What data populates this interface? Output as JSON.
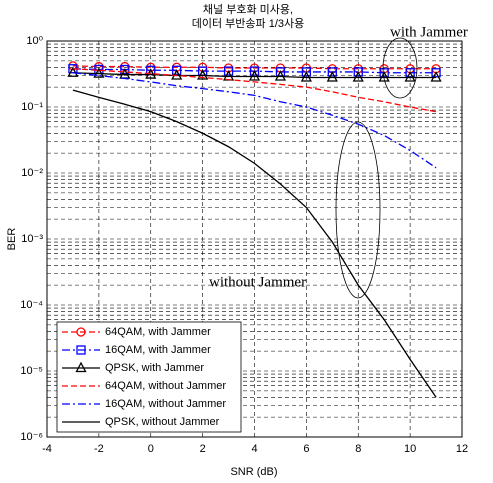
{
  "chart_data": {
    "type": "line",
    "title": [
      "채널 부호화 미사용,",
      "데이터 부반송파 1/3사용"
    ],
    "x_label": "SNR (dB)",
    "y_label": "BER",
    "annotations": [
      "with Jammer",
      "without Jammer"
    ],
    "log_y": true,
    "grid": true,
    "grid_style": "dashed",
    "legend": "lower-left",
    "xlim": [
      -4,
      12
    ],
    "xticks": [
      -4,
      -2,
      0,
      2,
      4,
      6,
      8,
      10,
      12
    ],
    "ylim": [
      1e-06,
      1
    ],
    "yticks": [
      {
        "value": 1e-06,
        "label": "10⁻⁶"
      },
      {
        "value": 1e-05,
        "label": "10⁻⁵"
      },
      {
        "value": 0.0001,
        "label": "10⁻⁴"
      },
      {
        "value": 0.001,
        "label": "10⁻³"
      },
      {
        "value": 0.01,
        "label": "10⁻²"
      },
      {
        "value": 0.1,
        "label": "10⁻¹"
      },
      {
        "value": 1,
        "label": "10⁰"
      }
    ],
    "x": [
      -3,
      -2,
      -1,
      0,
      1,
      2,
      3,
      4,
      5,
      6,
      7,
      8,
      9,
      10,
      11
    ],
    "series": [
      {
        "name": "64QAM, with Jammer",
        "color": "#ff0000",
        "dash": "dashed",
        "marker": "circle",
        "values": [
          0.42,
          0.41,
          0.41,
          0.4,
          0.4,
          0.4,
          0.39,
          0.39,
          0.39,
          0.39,
          0.38,
          0.38,
          0.38,
          0.38,
          0.38
        ]
      },
      {
        "name": "16QAM, with Jammer",
        "color": "#0000ff",
        "dash": "dashdot",
        "marker": "square",
        "values": [
          0.38,
          0.37,
          0.37,
          0.36,
          0.36,
          0.35,
          0.35,
          0.35,
          0.34,
          0.34,
          0.34,
          0.34,
          0.33,
          0.33,
          0.33
        ]
      },
      {
        "name": "QPSK, with Jammer",
        "color": "#000000",
        "dash": "solid",
        "marker": "triangle",
        "values": [
          0.33,
          0.32,
          0.31,
          0.31,
          0.3,
          0.3,
          0.29,
          0.29,
          0.29,
          0.28,
          0.28,
          0.28,
          0.28,
          0.28,
          0.28
        ]
      },
      {
        "name": "64QAM, without Jammer",
        "color": "#ff0000",
        "dash": "dashed",
        "marker": "none",
        "values": [
          0.38,
          0.36,
          0.34,
          0.32,
          0.3,
          0.28,
          0.26,
          0.24,
          0.22,
          0.2,
          0.17,
          0.14,
          0.12,
          0.1,
          0.085
        ]
      },
      {
        "name": "16QAM, without Jammer",
        "color": "#0000ff",
        "dash": "dashdot",
        "marker": "none",
        "values": [
          0.33,
          0.3,
          0.27,
          0.24,
          0.21,
          0.19,
          0.17,
          0.15,
          0.12,
          0.1,
          0.075,
          0.055,
          0.037,
          0.022,
          0.012
        ]
      },
      {
        "name": "QPSK, without Jammer",
        "color": "#000000",
        "dash": "solid",
        "marker": "none",
        "values": [
          0.18,
          0.14,
          0.11,
          0.085,
          0.06,
          0.04,
          0.025,
          0.014,
          0.0068,
          0.003,
          0.0009,
          0.0002,
          6e-05,
          1.5e-05,
          4e-06
        ]
      }
    ]
  }
}
